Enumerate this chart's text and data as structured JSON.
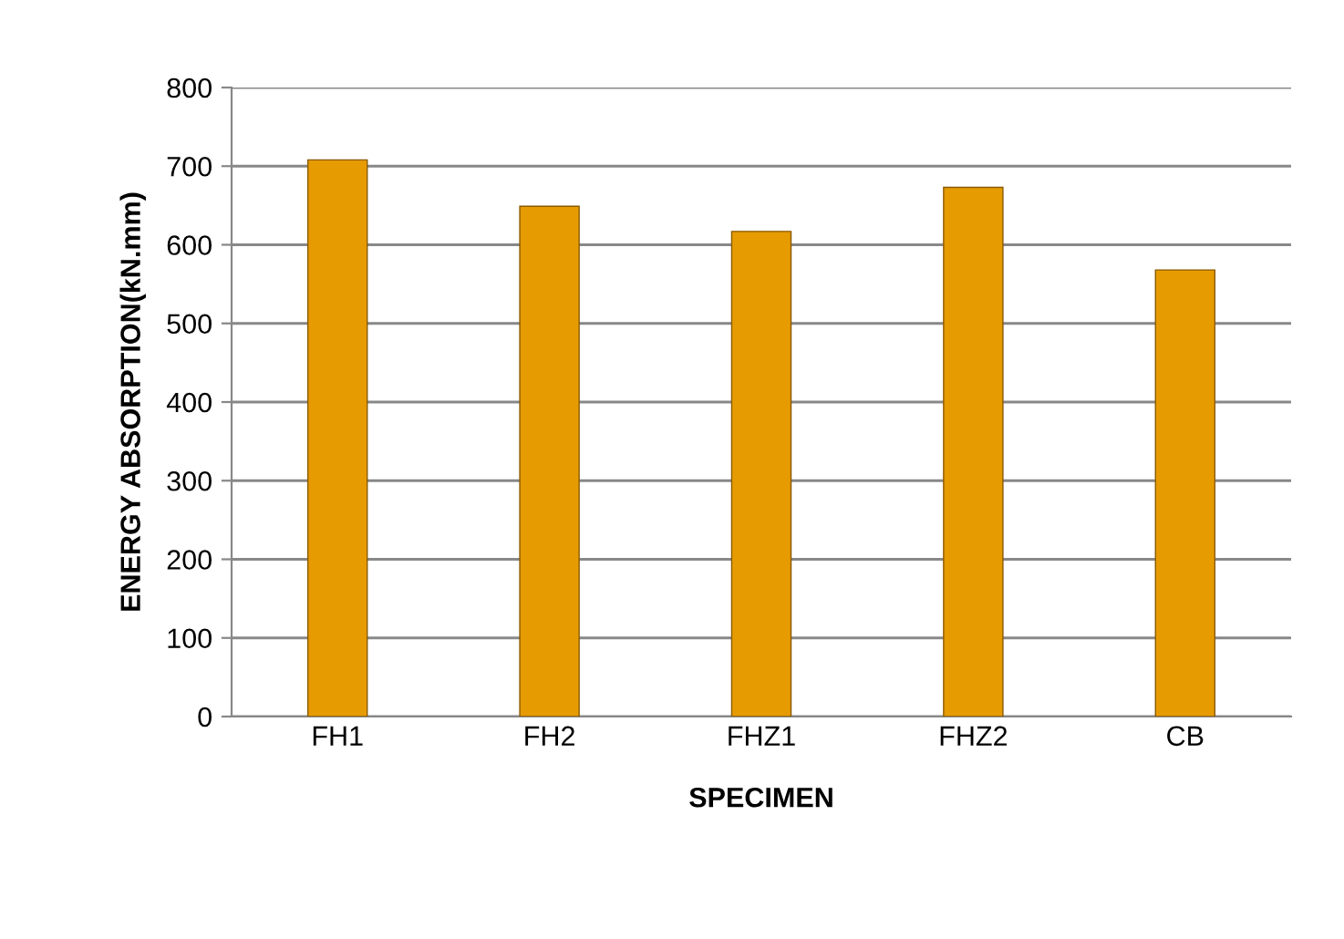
{
  "chart_data": {
    "type": "bar",
    "xlabel": "SPECIMEN",
    "ylabel": "ENERGY ABSORPTION(kN.mm)",
    "categories": [
      "FH1",
      "FH2",
      "FHZ1",
      "FHZ2",
      "CB"
    ],
    "values": [
      708,
      649,
      617,
      673,
      568
    ],
    "color": "#e69b00",
    "ylim": [
      0,
      800
    ],
    "yticks": [
      0,
      100,
      200,
      300,
      400,
      500,
      600,
      700,
      800
    ],
    "grid": "y",
    "legend": false
  }
}
